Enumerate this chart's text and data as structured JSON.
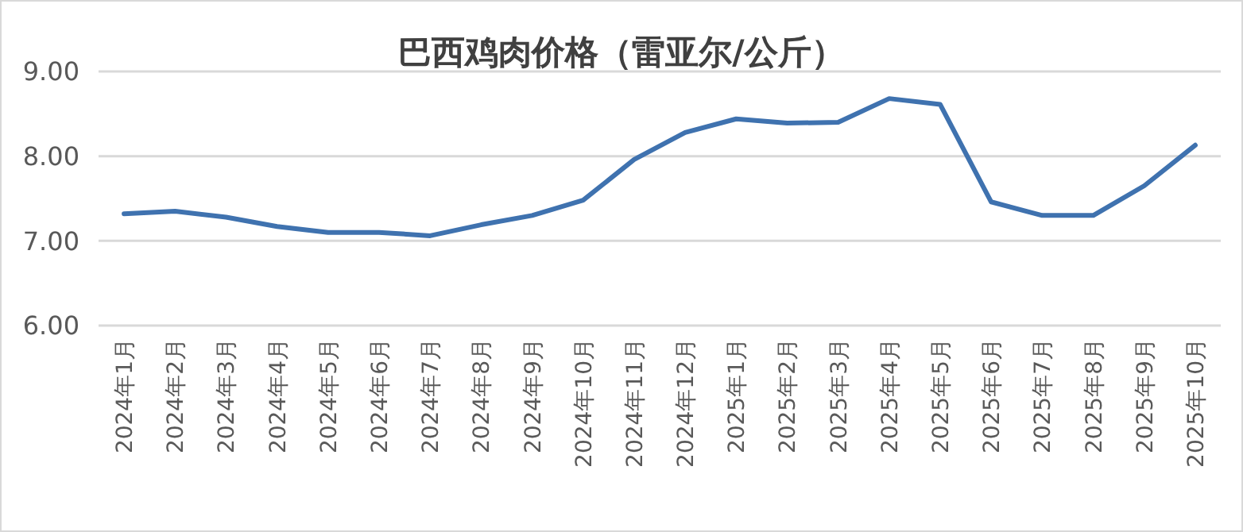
{
  "chart_data": {
    "type": "line",
    "title": "巴西鸡肉价格（雷亚尔/公斤）",
    "categories": [
      "2024年1月",
      "2024年2月",
      "2024年3月",
      "2024年4月",
      "2024年5月",
      "2024年6月",
      "2024年7月",
      "2024年8月",
      "2024年9月",
      "2024年10月",
      "2024年11月",
      "2024年12月",
      "2025年1月",
      "2025年2月",
      "2025年3月",
      "2025年4月",
      "2025年5月",
      "2025年6月",
      "2025年7月",
      "2025年8月",
      "2025年9月",
      "2025年10月"
    ],
    "series": [
      {
        "color": "#3f72af",
        "values": [
          7.32,
          7.35,
          7.28,
          7.17,
          7.1,
          7.1,
          7.06,
          7.19,
          7.3,
          7.48,
          7.96,
          8.28,
          8.44,
          8.39,
          8.4,
          8.68,
          8.61,
          7.46,
          7.3,
          7.3,
          7.65,
          8.13
        ]
      }
    ],
    "ylim": [
      6,
      9
    ],
    "yticks": [
      {
        "value": 6,
        "label": "6.00"
      },
      {
        "value": 7,
        "label": "7.00"
      },
      {
        "value": 8,
        "label": "8.00"
      },
      {
        "value": 9,
        "label": "9.00"
      }
    ],
    "grid": "y",
    "marker": "none",
    "line_style": "solid"
  }
}
